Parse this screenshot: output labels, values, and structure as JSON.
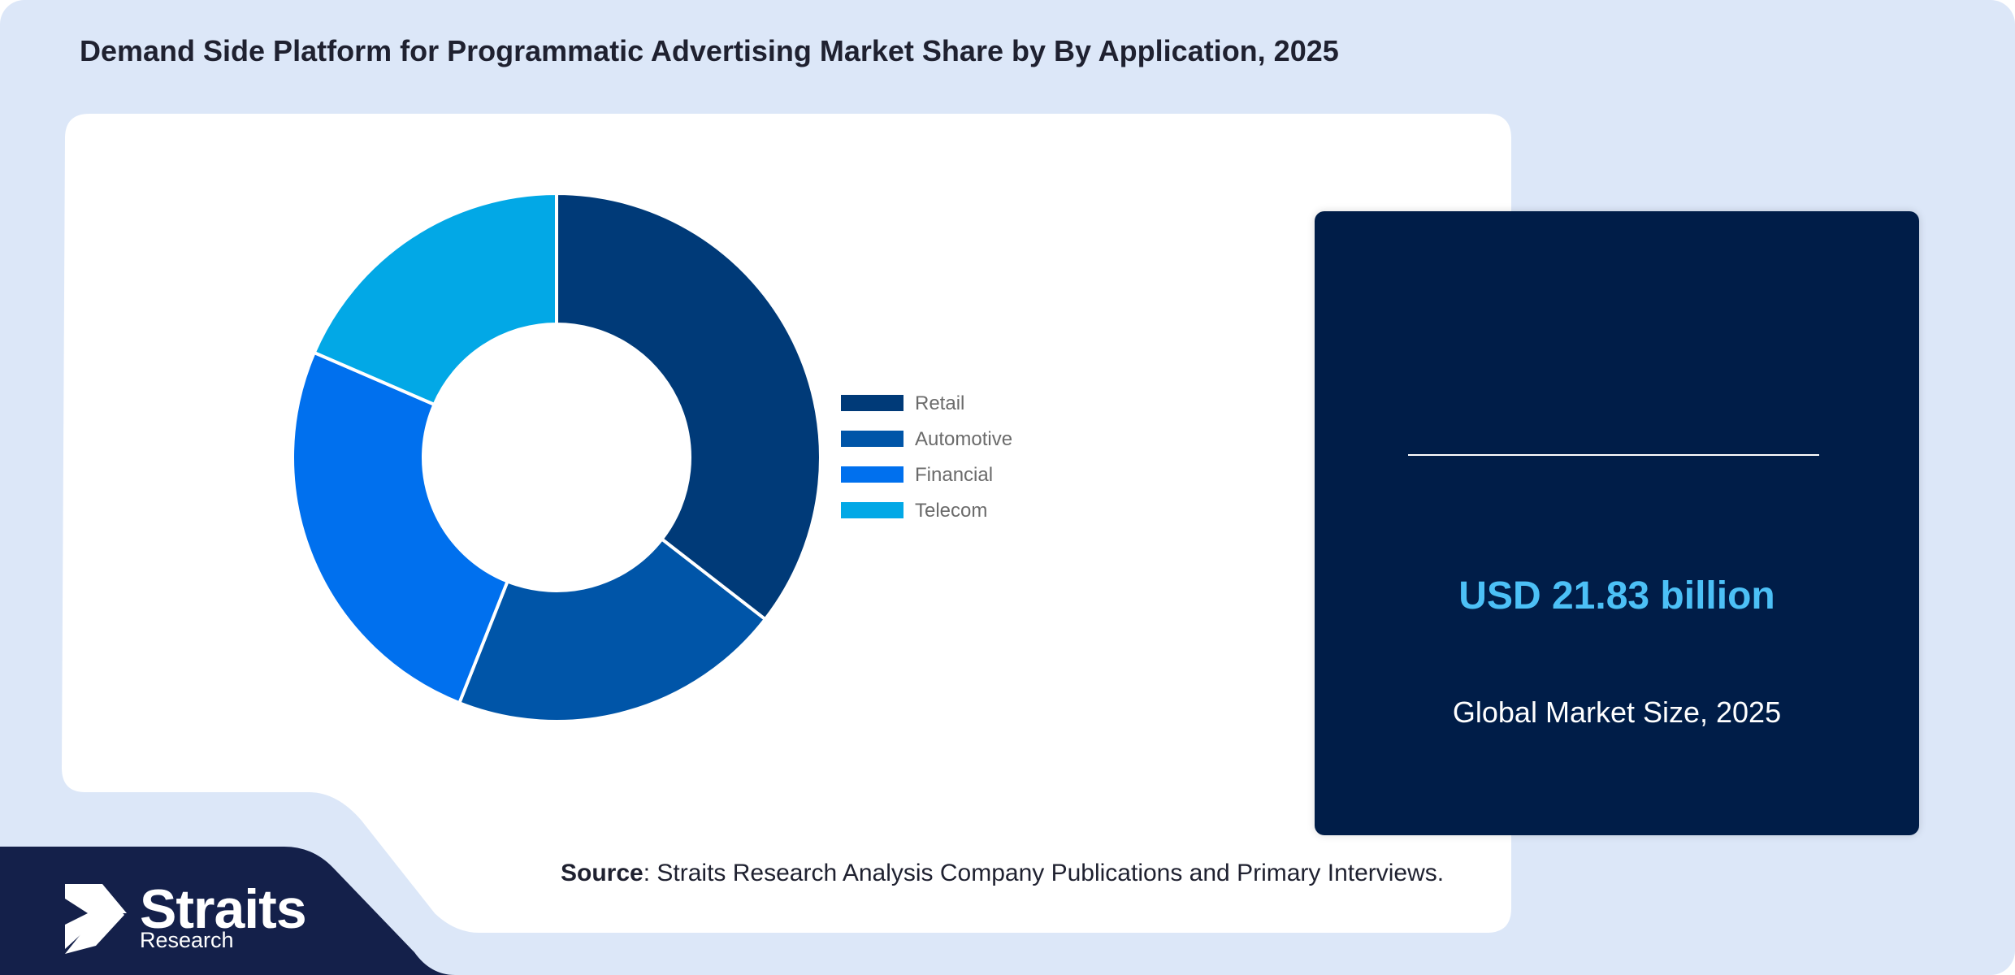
{
  "title": "Demand Side Platform for Programmatic Advertising Market Share by By Application, 2025",
  "colors": {
    "page_background": "#dce7f8",
    "panel": "#ffffff",
    "footer_band": "#14204a",
    "card": "#001d48",
    "highlight": "#4cc0f6"
  },
  "chart_data": {
    "type": "pie",
    "variant": "donut",
    "categories": [
      "Retail",
      "Automotive",
      "Financial",
      "Telecom"
    ],
    "values": [
      35.5,
      20.5,
      25.5,
      18.5
    ],
    "colors": [
      "#003a78",
      "#0055a8",
      "#0070ee",
      "#02a8e6"
    ],
    "legend_position": "right"
  },
  "highlight": {
    "value": "USD 21.83 billion",
    "caption": "Global Market Size, 2025"
  },
  "source": {
    "label": "Source",
    "text": ": Straits Research Analysis Company Publications and Primary Interviews."
  },
  "brand": {
    "name": "Straits",
    "sub": "Research",
    "logo_icon": "arrow-chevron-icon"
  }
}
